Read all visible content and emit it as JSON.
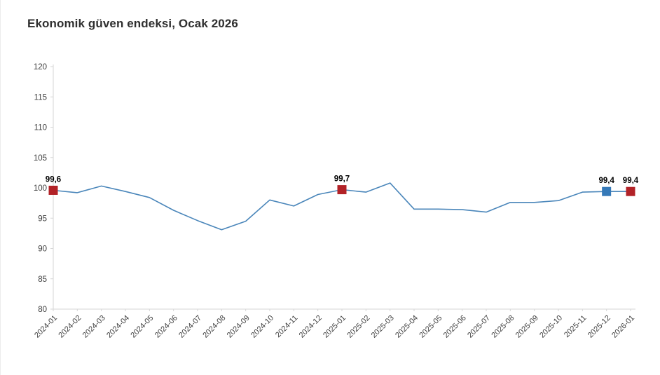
{
  "page": {
    "title": "Ekonomik güven endeksi, Ocak 2026"
  },
  "chart_data": {
    "type": "line",
    "title": "Ekonomik güven endeksi, Ocak 2026",
    "xlabel": "",
    "ylabel": "",
    "ylim": [
      80,
      120
    ],
    "ytick_step": 5,
    "grid": false,
    "legend": "none",
    "categories": [
      "2024-01",
      "2024-02",
      "2024-03",
      "2024-04",
      "2024-05",
      "2024-06",
      "2024-07",
      "2024-08",
      "2024-09",
      "2024-10",
      "2024-11",
      "2024-12",
      "2025-01",
      "2025-02",
      "2025-03",
      "2025-04",
      "2025-05",
      "2025-06",
      "2025-07",
      "2025-08",
      "2025-09",
      "2025-10",
      "2025-11",
      "2025-12",
      "2026-01"
    ],
    "values": [
      99.6,
      99.2,
      100.3,
      99.4,
      98.4,
      96.3,
      94.6,
      93.1,
      94.5,
      98.0,
      97.0,
      98.9,
      99.7,
      99.3,
      100.8,
      96.5,
      96.5,
      96.4,
      96.0,
      97.6,
      97.6,
      97.9,
      99.3,
      99.4,
      99.4
    ],
    "highlighted_points": [
      {
        "category": "2024-01",
        "index": 0,
        "value": 99.6,
        "label": "99,6",
        "marker": "square",
        "color": "#b22227"
      },
      {
        "category": "2025-01",
        "index": 12,
        "value": 99.7,
        "label": "99,7",
        "marker": "square",
        "color": "#b22227"
      },
      {
        "category": "2025-12",
        "index": 23,
        "value": 99.4,
        "label": "99,4",
        "marker": "square",
        "color": "#3579b8"
      },
      {
        "category": "2026-01",
        "index": 24,
        "value": 99.4,
        "label": "99,4",
        "marker": "square",
        "color": "#b22227"
      }
    ],
    "colors": {
      "line": "#4a86ba",
      "axis": "#d6d6d6",
      "tick_label": "#404040",
      "data_label": "#000000",
      "title": "#2f2f2f"
    }
  }
}
